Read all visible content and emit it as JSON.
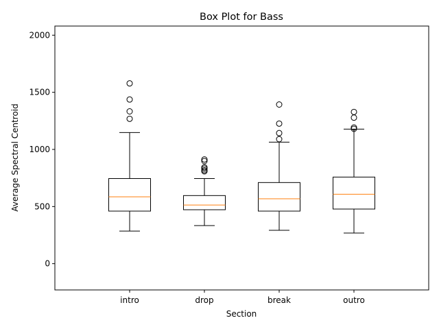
{
  "chart_data": {
    "type": "box",
    "title": "Box Plot for Bass",
    "xlabel": "Section",
    "ylabel": "Average Spectral Centroid",
    "ylim": [
      -230,
      2080
    ],
    "yticks": [
      0,
      500,
      1000,
      1500,
      2000
    ],
    "grid": false,
    "categories": [
      "intro",
      "drop",
      "break",
      "outro"
    ],
    "boxes": [
      {
        "label": "intro",
        "whisker_low": 285,
        "q1": 460,
        "median": 585,
        "q3": 745,
        "whisker_high": 1148,
        "outliers": [
          1268,
          1333,
          1437,
          1578
        ]
      },
      {
        "label": "drop",
        "whisker_low": 333,
        "q1": 472,
        "median": 513,
        "q3": 596,
        "whisker_high": 745,
        "outliers": [
          808,
          818,
          832,
          843,
          898,
          912
        ]
      },
      {
        "label": "break",
        "whisker_low": 292,
        "q1": 460,
        "median": 568,
        "q3": 710,
        "whisker_high": 1064,
        "outliers": [
          1090,
          1143,
          1226,
          1393
        ]
      },
      {
        "label": "outro",
        "whisker_low": 268,
        "q1": 478,
        "median": 608,
        "q3": 758,
        "whisker_high": 1178,
        "outliers": [
          1180,
          1192,
          1278,
          1328
        ]
      }
    ],
    "colors": {
      "box": "#000000",
      "median": "#ff7f0e",
      "outlier": "#000000"
    }
  }
}
